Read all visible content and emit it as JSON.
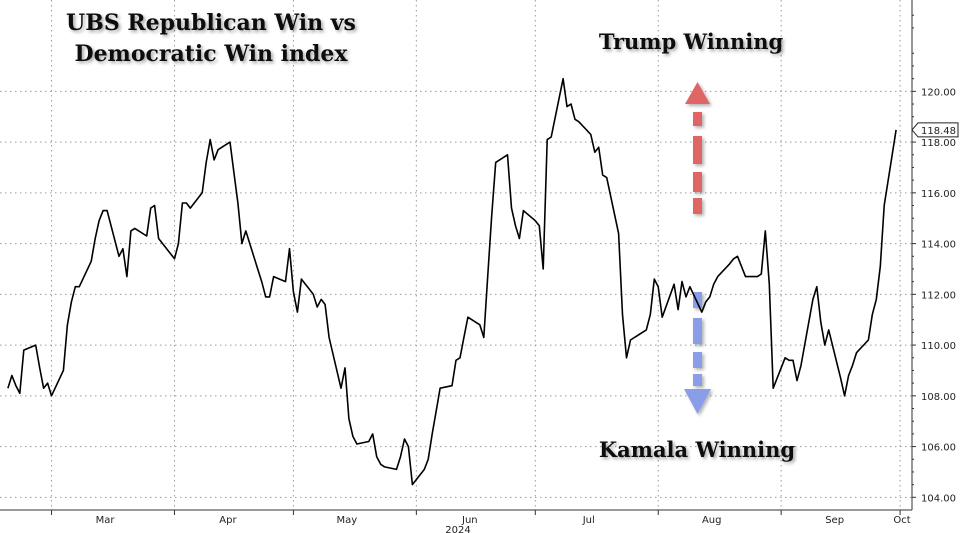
{
  "chart_data": {
    "type": "line",
    "title": "UBS Republican Win vs Democratic Win index",
    "title_lines": [
      "UBS Republican Win vs",
      "Democratic Win index"
    ],
    "xlabel": "2024",
    "ylabel": "",
    "ylim": [
      103.5,
      123.6
    ],
    "grid": true,
    "y_axis_side": "right",
    "yticks": [
      104,
      106,
      108,
      110,
      112,
      114,
      116,
      118,
      120
    ],
    "ytick_labels": [
      "104.00",
      "106.00",
      "108.00",
      "110.00",
      "112.00",
      "114.00",
      "116.00",
      "118.00",
      "120.00"
    ],
    "month_labels": [
      "Mar",
      "Apr",
      "May",
      "Jun",
      "Jul",
      "Aug",
      "Sep",
      "Oct"
    ],
    "last_value_label": "118.48",
    "series": [
      {
        "color": "#000000",
        "x": [
          "2024-02-19",
          "2024-02-20",
          "2024-02-21",
          "2024-02-22",
          "2024-02-23",
          "2024-02-26",
          "2024-02-27",
          "2024-02-28",
          "2024-02-29",
          "2024-03-01",
          "2024-03-04",
          "2024-03-05",
          "2024-03-06",
          "2024-03-07",
          "2024-03-08",
          "2024-03-11",
          "2024-03-12",
          "2024-03-13",
          "2024-03-14",
          "2024-03-15",
          "2024-03-18",
          "2024-03-19",
          "2024-03-20",
          "2024-03-21",
          "2024-03-22",
          "2024-03-25",
          "2024-03-26",
          "2024-03-27",
          "2024-03-28",
          "2024-04-01",
          "2024-04-02",
          "2024-04-03",
          "2024-04-04",
          "2024-04-05",
          "2024-04-08",
          "2024-04-09",
          "2024-04-10",
          "2024-04-11",
          "2024-04-12",
          "2024-04-15",
          "2024-04-16",
          "2024-04-17",
          "2024-04-18",
          "2024-04-19",
          "2024-04-22",
          "2024-04-23",
          "2024-04-24",
          "2024-04-25",
          "2024-04-26",
          "2024-04-29",
          "2024-04-30",
          "2024-05-01",
          "2024-05-02",
          "2024-05-03",
          "2024-05-06",
          "2024-05-07",
          "2024-05-08",
          "2024-05-09",
          "2024-05-10",
          "2024-05-13",
          "2024-05-14",
          "2024-05-15",
          "2024-05-16",
          "2024-05-17",
          "2024-05-20",
          "2024-05-21",
          "2024-05-22",
          "2024-05-23",
          "2024-05-24",
          "2024-05-27",
          "2024-05-28",
          "2024-05-29",
          "2024-05-30",
          "2024-05-31",
          "2024-06-03",
          "2024-06-04",
          "2024-06-05",
          "2024-06-06",
          "2024-06-07",
          "2024-06-10",
          "2024-06-11",
          "2024-06-12",
          "2024-06-13",
          "2024-06-14",
          "2024-06-17",
          "2024-06-18",
          "2024-06-19",
          "2024-06-20",
          "2024-06-21",
          "2024-06-24",
          "2024-06-25",
          "2024-06-26",
          "2024-06-27",
          "2024-06-28",
          "2024-07-01",
          "2024-07-02",
          "2024-07-03",
          "2024-07-04",
          "2024-07-05",
          "2024-07-08",
          "2024-07-09",
          "2024-07-10",
          "2024-07-11",
          "2024-07-12",
          "2024-07-15",
          "2024-07-16",
          "2024-07-17",
          "2024-07-18",
          "2024-07-19",
          "2024-07-22",
          "2024-07-23",
          "2024-07-24",
          "2024-07-25",
          "2024-07-26",
          "2024-07-29",
          "2024-07-30",
          "2024-07-31",
          "2024-08-01",
          "2024-08-02",
          "2024-08-05",
          "2024-08-06",
          "2024-08-07",
          "2024-08-08",
          "2024-08-09",
          "2024-08-12",
          "2024-08-13",
          "2024-08-14",
          "2024-08-15",
          "2024-08-16",
          "2024-08-19",
          "2024-08-20",
          "2024-08-21",
          "2024-08-22",
          "2024-08-23",
          "2024-08-26",
          "2024-08-27",
          "2024-08-28",
          "2024-08-29",
          "2024-08-30",
          "2024-09-02",
          "2024-09-03",
          "2024-09-04",
          "2024-09-05",
          "2024-09-06",
          "2024-09-09",
          "2024-09-10",
          "2024-09-11",
          "2024-09-12",
          "2024-09-13",
          "2024-09-16",
          "2024-09-17",
          "2024-09-18",
          "2024-09-19",
          "2024-09-20",
          "2024-09-23",
          "2024-09-24",
          "2024-09-25",
          "2024-09-26",
          "2024-09-27",
          "2024-09-30"
        ],
        "y": [
          108.3,
          108.8,
          108.4,
          108.1,
          109.8,
          110.0,
          109.1,
          108.3,
          108.5,
          108.0,
          109.0,
          110.8,
          111.7,
          112.3,
          112.3,
          113.3,
          114.2,
          114.9,
          115.3,
          115.3,
          113.5,
          113.8,
          112.7,
          114.5,
          114.6,
          114.3,
          115.4,
          115.5,
          114.2,
          113.4,
          114.0,
          115.6,
          115.6,
          115.4,
          116.0,
          117.2,
          118.1,
          117.3,
          117.7,
          118.0,
          116.8,
          115.6,
          114.0,
          114.5,
          113.0,
          112.5,
          111.9,
          111.9,
          112.7,
          112.5,
          113.8,
          112.1,
          111.3,
          112.6,
          112.0,
          111.5,
          111.8,
          111.6,
          110.3,
          108.3,
          109.1,
          107.1,
          106.4,
          106.1,
          106.2,
          106.5,
          105.6,
          105.3,
          105.2,
          105.1,
          105.6,
          106.3,
          106.0,
          104.5,
          105.1,
          105.5,
          106.5,
          107.4,
          108.3,
          108.4,
          109.4,
          109.5,
          110.3,
          111.1,
          110.8,
          110.3,
          112.7,
          115.1,
          117.2,
          117.5,
          115.4,
          114.7,
          114.2,
          115.3,
          114.9,
          114.7,
          113.0,
          118.1,
          118.2,
          120.5,
          119.4,
          119.5,
          118.9,
          118.8,
          118.3,
          117.6,
          117.8,
          116.7,
          116.6,
          114.4,
          111.2,
          109.5,
          110.2,
          110.3,
          110.6,
          111.2,
          112.6,
          112.3,
          111.1,
          112.4,
          111.4,
          112.5,
          111.9,
          112.3,
          111.3,
          111.7,
          111.9,
          112.4,
          112.7,
          113.2,
          113.4,
          113.5,
          113.1,
          112.7,
          112.7,
          112.8,
          114.5,
          112.4,
          108.3,
          109.5,
          109.4,
          109.4,
          108.6,
          109.2,
          111.8,
          112.3,
          110.9,
          110.0,
          110.6,
          108.7,
          108.0,
          108.8,
          109.2,
          109.7,
          110.2,
          111.2,
          111.8,
          113.1,
          115.5,
          118.48
        ]
      }
    ],
    "annotations": [
      {
        "text": "Trump Winning",
        "arrow_direction": "up",
        "arrow_color": "#e06666"
      },
      {
        "text": "Kamala Winning",
        "arrow_direction": "down",
        "arrow_color": "#8a9de8"
      }
    ]
  }
}
